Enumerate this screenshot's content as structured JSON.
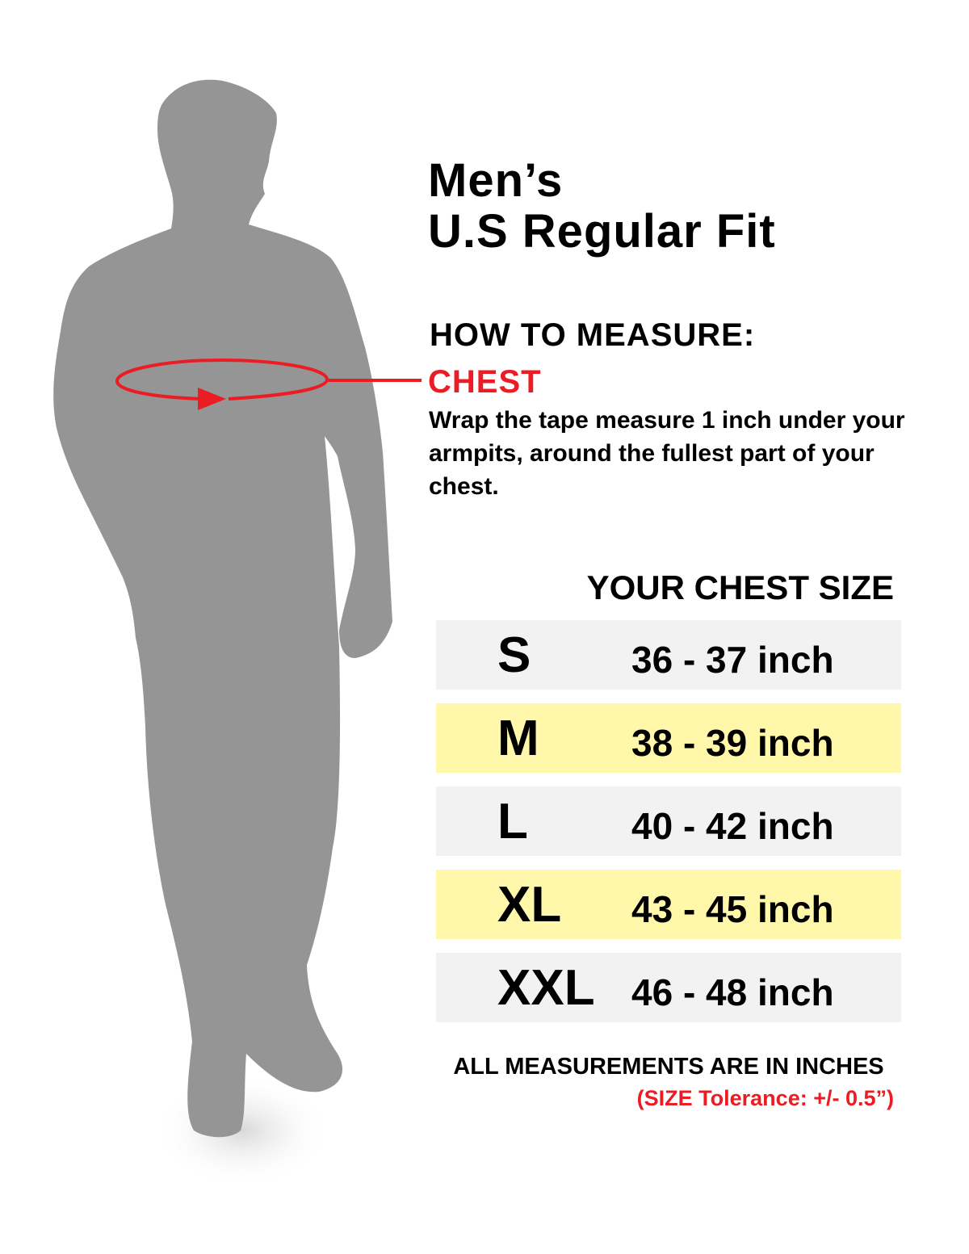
{
  "colors": {
    "silhouette": "#959595",
    "accent_red": "#ec1c24",
    "row_gray": "#f2f2f2",
    "row_yellow": "#fff8aa"
  },
  "header": {
    "line1": "Men’s",
    "line2": "U.S Regular Fit"
  },
  "measure": {
    "heading": "HOW TO MEASURE:",
    "label": "CHEST",
    "description": "Wrap the tape measure 1 inch under your armpits, around the fullest part of your chest."
  },
  "table": {
    "heading": "YOUR CHEST SIZE",
    "rows": [
      {
        "size": "S",
        "range": "36 - 37 inch",
        "highlight": false
      },
      {
        "size": "M",
        "range": "38 - 39 inch",
        "highlight": true
      },
      {
        "size": "L",
        "range": "40 - 42 inch",
        "highlight": false
      },
      {
        "size": "XL",
        "range": "43 - 45 inch",
        "highlight": true
      },
      {
        "size": "XXL",
        "range": "46 - 48 inch",
        "highlight": false
      }
    ]
  },
  "footer": {
    "note": "ALL MEASUREMENTS ARE IN INCHES",
    "tolerance": "(SIZE Tolerance: +/- 0.5”)"
  }
}
